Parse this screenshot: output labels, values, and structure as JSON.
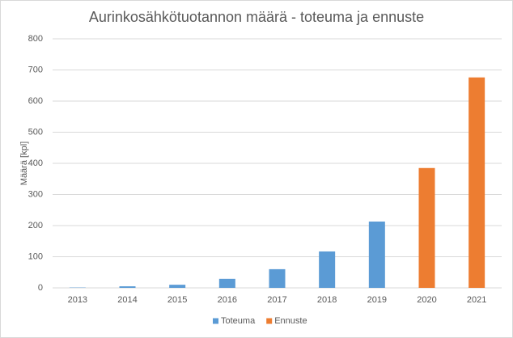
{
  "chart_data": {
    "type": "bar",
    "title": "Aurinkosähkötuotannon määrä - toteuma ja ennuste",
    "y_label": "Määrä [kpl]",
    "categories": [
      "2013",
      "2014",
      "2015",
      "2016",
      "2017",
      "2018",
      "2019",
      "2020",
      "2021"
    ],
    "series": [
      {
        "name": "Toteuma",
        "color": "#5b9bd5",
        "values": [
          1,
          5,
          10,
          29,
          60,
          117,
          213,
          null,
          null
        ]
      },
      {
        "name": "Ennuste",
        "color": "#ed7d31",
        "values": [
          null,
          null,
          null,
          null,
          null,
          null,
          null,
          385,
          676
        ]
      }
    ],
    "ylim": [
      0,
      800
    ],
    "yticks": [
      0,
      100,
      200,
      300,
      400,
      500,
      600,
      700,
      800
    ],
    "grid": true,
    "legend": "bottom"
  }
}
